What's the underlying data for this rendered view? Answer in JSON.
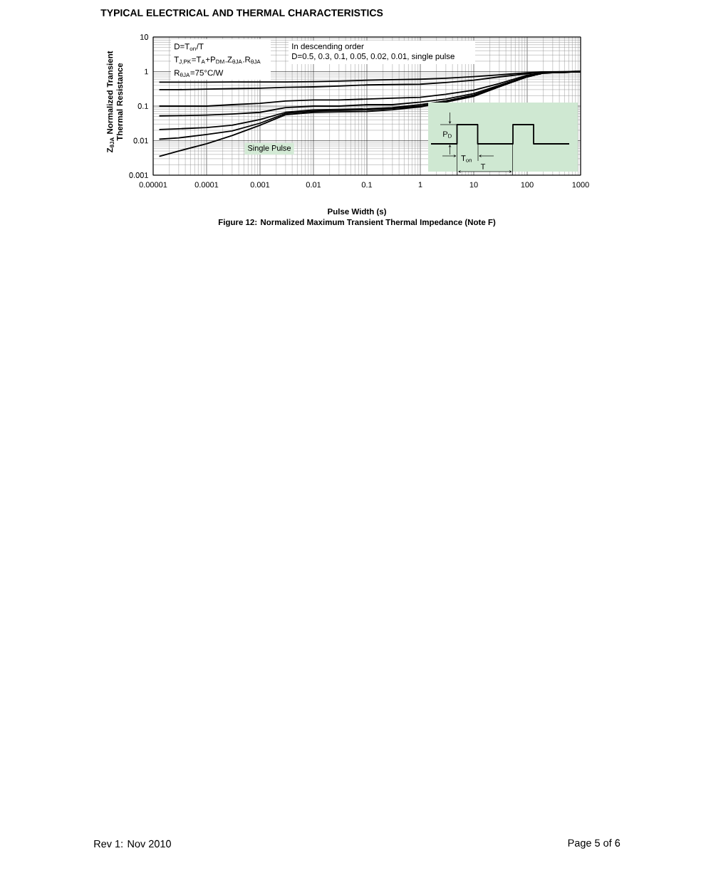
{
  "chart_data": {
    "type": "line",
    "title": "TYPICAL ELECTRICAL AND THERMAL CHARACTERISTICS",
    "subtitle": "Figure 12: Normalized Maximum Transient Thermal Impedance (Note F)",
    "xlabel": "Pulse Width (s)",
    "ylabel": "Z$_{θJA}$ Normalized Transient Thermal Resistance",
    "log": "xy",
    "grid": true,
    "xlim": [
      1e-05,
      1000
    ],
    "ylim": [
      0.001,
      10
    ],
    "xticks": [
      {
        "value": 1e-05,
        "label": "0.00001"
      },
      0.0001,
      0.001,
      0.01,
      0.1,
      1,
      10,
      100,
      1000
    ],
    "yticks": [
      0.001,
      0.01,
      0.1,
      1,
      10
    ],
    "x": [
      1.3e-05,
      3e-05,
      0.0001,
      0.0003,
      0.001,
      0.003,
      0.01,
      0.03,
      0.1,
      0.3,
      1,
      3,
      10,
      30,
      100,
      200,
      1000
    ],
    "series": [
      {
        "color": "#000000",
        "values": [
          0.49,
          0.49,
          0.49,
          0.5,
          0.5,
          0.5,
          0.51,
          0.53,
          0.56,
          0.58,
          0.6,
          0.64,
          0.71,
          0.8,
          0.92,
          0.98,
          1
        ]
      },
      {
        "color": "#000000",
        "values": [
          0.3,
          0.3,
          0.31,
          0.32,
          0.33,
          0.35,
          0.36,
          0.38,
          0.41,
          0.42,
          0.43,
          0.48,
          0.56,
          0.7,
          0.86,
          0.97,
          1
        ]
      },
      {
        "color": "#000000",
        "values": [
          0.1,
          0.1,
          0.1,
          0.11,
          0.12,
          0.14,
          0.15,
          0.15,
          0.16,
          0.17,
          0.18,
          0.22,
          0.29,
          0.45,
          0.78,
          0.94,
          1
        ]
      },
      {
        "color": "#000000",
        "values": [
          0.052,
          0.053,
          0.055,
          0.059,
          0.066,
          0.09,
          0.1,
          0.1,
          0.11,
          0.11,
          0.13,
          0.16,
          0.23,
          0.4,
          0.74,
          0.92,
          1
        ]
      },
      {
        "color": "#000000",
        "values": [
          0.021,
          0.022,
          0.024,
          0.028,
          0.041,
          0.066,
          0.077,
          0.08,
          0.083,
          0.09,
          0.11,
          0.14,
          0.21,
          0.38,
          0.72,
          0.91,
          1
        ]
      },
      {
        "color": "#000000",
        "values": [
          0.011,
          0.012,
          0.015,
          0.019,
          0.032,
          0.061,
          0.071,
          0.075,
          0.078,
          0.085,
          0.1,
          0.14,
          0.2,
          0.37,
          0.71,
          0.9,
          1
        ]
      },
      {
        "name": "Single Pulse",
        "color": "#000000",
        "values": [
          0.0035,
          0.005,
          0.0081,
          0.014,
          0.028,
          0.056,
          0.066,
          0.068,
          0.07,
          0.078,
          0.095,
          0.13,
          0.19,
          0.36,
          0.7,
          0.9,
          1
        ]
      }
    ],
    "annotations": [
      "D=T$_{on}$/T",
      "T$_{J,PK}$=T$_{A}$+P$_{DM}$.Z$_{θJA}$.R$_{θJA}$",
      "R$_{θJA}$=75°C/W",
      "In descending order",
      "D=0.5, 0.3, 0.1, 0.05, 0.02, 0.01, single pulse",
      "P$_{D}$",
      "T$_{on}$",
      "T",
      "Rev 1: Nov 2010",
      "Page 5 of 6"
    ]
  }
}
